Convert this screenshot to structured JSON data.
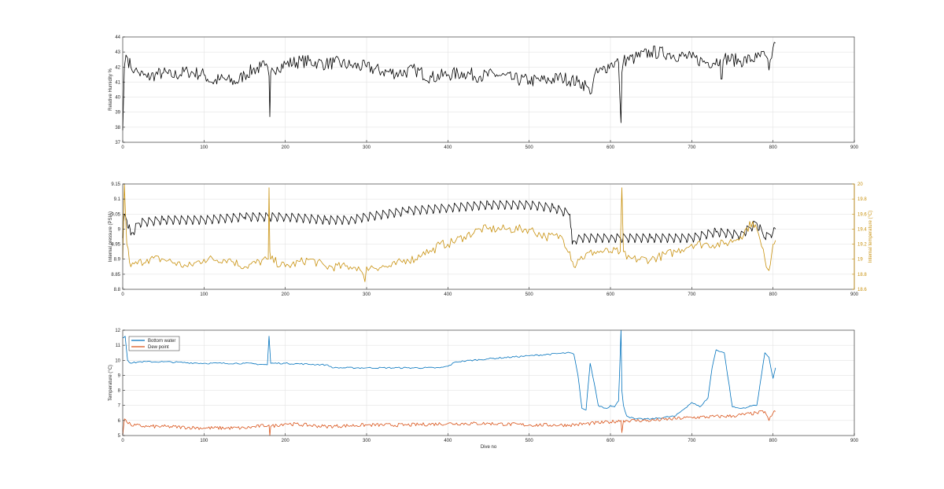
{
  "colors": {
    "black": "#000000",
    "gold": "#C8900C",
    "blue": "#0072BD",
    "orange": "#D95319",
    "axis": "#262626",
    "grid": "#e3e3e3"
  },
  "chart_data": [
    {
      "type": "line",
      "id": "rh",
      "xlabel": "",
      "ylabel": "Relative Humidity %",
      "xlim": [
        0,
        900
      ],
      "ylim": [
        37,
        44
      ],
      "xticks": [
        0,
        100,
        200,
        300,
        400,
        500,
        600,
        700,
        800,
        900
      ],
      "yticks": [
        37,
        38,
        39,
        40,
        41,
        42,
        43,
        44
      ],
      "grid": true,
      "series": [
        {
          "color": "#000000",
          "x": [
            0,
            2,
            4,
            6,
            10,
            15,
            20,
            30,
            40,
            50,
            60,
            80,
            100,
            110,
            120,
            140,
            150,
            160,
            170,
            175,
            180,
            181,
            182,
            185,
            190,
            200,
            220,
            240,
            250,
            260,
            280,
            300,
            320,
            340,
            360,
            380,
            400,
            420,
            440,
            460,
            480,
            500,
            520,
            540,
            560,
            570,
            575,
            580,
            590,
            600,
            610,
            613,
            614,
            616,
            620,
            630,
            650,
            670,
            700,
            720,
            735,
            736,
            740,
            760,
            780,
            790,
            795,
            800,
            803
          ],
          "y": [
            37.8,
            42.0,
            42.8,
            42.6,
            42.0,
            41.8,
            41.6,
            41.3,
            41.5,
            41.6,
            41.4,
            41.7,
            41.5,
            41.0,
            41.2,
            41.0,
            41.5,
            41.8,
            42.0,
            42.1,
            41.4,
            38.7,
            41.6,
            41.8,
            42.0,
            42.2,
            42.4,
            42.3,
            42.2,
            42.3,
            42.1,
            42.0,
            41.7,
            41.6,
            41.8,
            41.3,
            41.5,
            41.6,
            41.4,
            41.5,
            41.2,
            41.1,
            41.1,
            41.3,
            41.0,
            40.8,
            40.2,
            41.4,
            41.8,
            42.2,
            42.3,
            38.3,
            41.6,
            42.4,
            42.5,
            42.6,
            43.0,
            42.9,
            42.6,
            42.3,
            42.5,
            41.2,
            42.6,
            42.4,
            42.6,
            42.8,
            41.8,
            43.3,
            43.6
          ]
        }
      ]
    },
    {
      "type": "line",
      "id": "pressure",
      "xlabel": "",
      "ylabel": "Internal pressure (PSIA)",
      "ylabel_right": "Internal temperature (°C)",
      "xlim": [
        0,
        900
      ],
      "ylim": [
        8.8,
        9.15
      ],
      "ylim_right": [
        18.6,
        20.0
      ],
      "xticks": [
        0,
        100,
        200,
        300,
        400,
        500,
        600,
        700,
        800,
        900
      ],
      "yticks": [
        8.8,
        8.85,
        8.9,
        8.95,
        9,
        9.05,
        9.1,
        9.15
      ],
      "ytick_labels": [
        "8.8",
        "8.85",
        "8.9",
        "8.95",
        "9",
        "9.05",
        "9.1",
        "9.15"
      ],
      "yticks_right": [
        18.6,
        18.8,
        19.0,
        19.2,
        19.4,
        19.6,
        19.8,
        20.0
      ],
      "ytick_labels_right": [
        "18.6",
        "18.8",
        "19",
        "19.2",
        "19.4",
        "19.6",
        "19.8",
        "20"
      ],
      "grid": true,
      "series": [
        {
          "color": "#000000",
          "axis": "left",
          "x": [
            0,
            2,
            5,
            10,
            20,
            50,
            100,
            150,
            180,
            200,
            250,
            280,
            300,
            350,
            400,
            450,
            500,
            530,
            550,
            553,
            556,
            560,
            580,
            600,
            620,
            650,
            700,
            730,
            760,
            780,
            790,
            800,
            803
          ],
          "y": [
            8.97,
            9.05,
            9.03,
            8.98,
            9.02,
            9.03,
            9.03,
            9.04,
            9.04,
            9.04,
            9.03,
            9.03,
            9.04,
            9.06,
            9.07,
            9.08,
            9.08,
            9.07,
            9.05,
            8.95,
            8.96,
            8.97,
            8.97,
            8.97,
            8.97,
            8.97,
            8.97,
            8.99,
            8.98,
            9.02,
            8.97,
            8.99,
            9.0
          ]
        },
        {
          "color": "#C8900C",
          "axis": "right",
          "x": [
            0,
            2,
            5,
            10,
            30,
            50,
            80,
            100,
            130,
            150,
            179,
            180,
            181,
            182,
            200,
            230,
            250,
            280,
            290,
            298,
            300,
            330,
            350,
            360,
            370,
            380,
            390,
            400,
            420,
            440,
            450,
            470,
            500,
            520,
            540,
            550,
            555,
            560,
            580,
            600,
            612,
            614,
            616,
            620,
            650,
            680,
            700,
            720,
            740,
            760,
            775,
            780,
            790,
            795,
            800,
            803
          ],
          "y": [
            19.0,
            20.0,
            19.2,
            18.9,
            19.0,
            19.0,
            18.9,
            19.0,
            19.0,
            18.9,
            19.0,
            19.95,
            19.1,
            19.0,
            18.9,
            19.0,
            18.9,
            18.9,
            18.9,
            18.7,
            18.9,
            18.9,
            19.0,
            19.0,
            19.1,
            19.1,
            19.2,
            19.2,
            19.3,
            19.4,
            19.4,
            19.4,
            19.4,
            19.3,
            19.3,
            19.1,
            18.9,
            19.0,
            19.1,
            19.1,
            19.1,
            19.95,
            19.1,
            19.0,
            19.0,
            19.1,
            19.2,
            19.2,
            19.2,
            19.3,
            19.5,
            19.4,
            19.0,
            18.85,
            19.2,
            19.25
          ]
        }
      ]
    },
    {
      "type": "line",
      "id": "temperature",
      "xlabel": "Dive no",
      "ylabel": "Temperature (°C)",
      "xlim": [
        0,
        900
      ],
      "ylim": [
        5,
        12
      ],
      "xticks": [
        0,
        100,
        200,
        300,
        400,
        500,
        600,
        700,
        800,
        900
      ],
      "yticks": [
        5,
        6,
        7,
        8,
        9,
        10,
        11,
        12
      ],
      "grid": true,
      "legend": "top-left",
      "series": [
        {
          "name": "Bottom water",
          "color": "#0072BD",
          "x": [
            0,
            3,
            6,
            10,
            20,
            50,
            100,
            150,
            178,
            180,
            182,
            200,
            250,
            260,
            300,
            350,
            390,
            400,
            410,
            450,
            500,
            550,
            555,
            560,
            565,
            570,
            575,
            580,
            585,
            590,
            595,
            600,
            605,
            610,
            613,
            614,
            616,
            620,
            630,
            650,
            680,
            700,
            710,
            720,
            725,
            730,
            740,
            750,
            760,
            770,
            775,
            780,
            790,
            795,
            800,
            803
          ],
          "y": [
            11.5,
            11.6,
            10.0,
            9.8,
            9.9,
            9.9,
            9.8,
            9.8,
            9.7,
            11.6,
            9.8,
            9.8,
            9.7,
            9.5,
            9.5,
            9.5,
            9.5,
            9.6,
            9.9,
            10.1,
            10.3,
            10.5,
            10.4,
            9.0,
            6.8,
            6.7,
            9.8,
            8.5,
            7.0,
            6.9,
            6.8,
            7.0,
            6.9,
            7.3,
            12.0,
            8.0,
            7.0,
            6.3,
            6.1,
            6.1,
            6.3,
            7.2,
            6.9,
            7.5,
            9.5,
            10.7,
            10.5,
            6.9,
            6.8,
            6.9,
            7.0,
            7.0,
            10.5,
            10.2,
            8.8,
            9.5
          ]
        },
        {
          "name": "Dew point",
          "color": "#D95319",
          "x": [
            0,
            2,
            5,
            10,
            30,
            50,
            100,
            150,
            180,
            181,
            182,
            200,
            250,
            300,
            350,
            400,
            450,
            500,
            550,
            600,
            613,
            614,
            616,
            650,
            700,
            750,
            780,
            790,
            795,
            800,
            803
          ],
          "y": [
            5.0,
            6.1,
            5.9,
            5.7,
            5.6,
            5.6,
            5.5,
            5.5,
            5.7,
            5.0,
            5.6,
            5.8,
            5.6,
            5.7,
            5.7,
            5.8,
            5.8,
            5.7,
            5.7,
            5.9,
            6.0,
            5.2,
            6.0,
            6.0,
            6.2,
            6.3,
            6.5,
            6.6,
            6.0,
            6.5,
            6.6
          ]
        }
      ]
    }
  ]
}
